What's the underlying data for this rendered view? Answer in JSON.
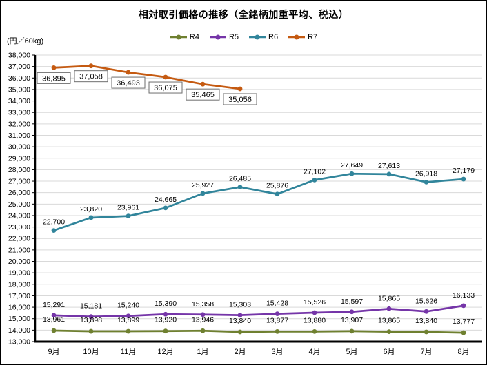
{
  "chart_data": {
    "type": "line",
    "title": "相対取引価格の推移（全銘柄加重平均、税込）",
    "unit_label": "(円／60kg)",
    "categories": [
      "9月",
      "10月",
      "11月",
      "12月",
      "1月",
      "2月",
      "3月",
      "4月",
      "5月",
      "6月",
      "7月",
      "8月"
    ],
    "ylim": [
      13000,
      38000
    ],
    "ytick_step": 1000,
    "grid": true,
    "legend_position": "top",
    "colors": {
      "grid": "#D9D9D9",
      "axis": "#000000",
      "label_box_border": "#6E6E6E",
      "label_box_fill": "#FFFFFF"
    },
    "series": [
      {
        "name": "R4",
        "color": "#6F8030",
        "label_position": "above",
        "boxed_labels": false,
        "label_offset": -13,
        "values": [
          13961,
          13898,
          13899,
          13920,
          13946,
          13840,
          13877,
          13880,
          13907,
          13865,
          13840,
          13777
        ]
      },
      {
        "name": "R5",
        "color": "#7535A8",
        "label_position": "above",
        "boxed_labels": false,
        "label_offset": -12,
        "values": [
          15291,
          15181,
          15240,
          15390,
          15358,
          15303,
          15428,
          15526,
          15597,
          15865,
          15626,
          16133
        ]
      },
      {
        "name": "R6",
        "color": "#31859B",
        "label_position": "above",
        "boxed_labels": false,
        "label_offset": -9,
        "values": [
          22700,
          23820,
          23961,
          24665,
          25927,
          26485,
          25876,
          27102,
          27649,
          27613,
          26918,
          27179
        ]
      },
      {
        "name": "R7",
        "color": "#C55A11",
        "label_position": "below",
        "boxed_labels": true,
        "label_offset": 7,
        "values": [
          36895,
          37058,
          36493,
          36075,
          35465,
          35056,
          null,
          null,
          null,
          null,
          null,
          null
        ]
      }
    ]
  }
}
